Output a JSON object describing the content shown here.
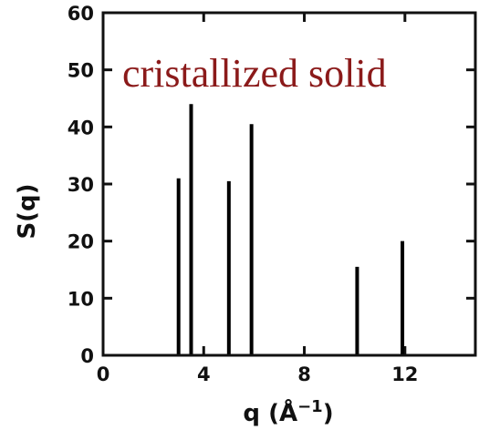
{
  "chart_data": {
    "type": "bar",
    "annotation": "cristallized solid",
    "xlabel": "q (Å⁻¹)",
    "xlabel_parts": {
      "main": "q (Å",
      "sup": "−1",
      "close": ")"
    },
    "ylabel": "S(q)",
    "xlim": [
      0,
      14.8
    ],
    "ylim": [
      0,
      60
    ],
    "xticks": [
      0,
      4,
      8,
      12
    ],
    "yticks": [
      0,
      10,
      20,
      30,
      40,
      50,
      60
    ],
    "grid": false,
    "x": [
      3.0,
      3.5,
      5.0,
      5.9,
      10.1,
      11.9
    ],
    "values": [
      31,
      44,
      30.5,
      40.5,
      15.5,
      20
    ],
    "colors": {
      "bars": "#000000",
      "axes": "#111111",
      "annotation": "#8b1a1a"
    }
  }
}
